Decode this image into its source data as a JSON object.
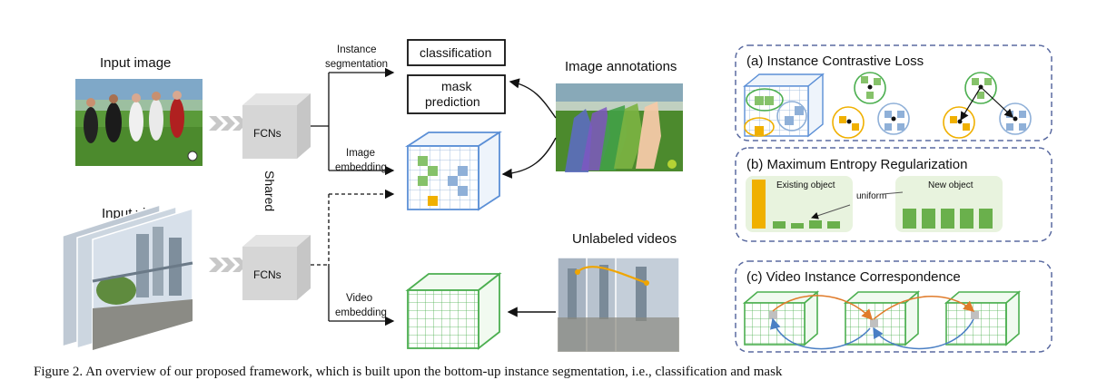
{
  "left": {
    "input_image_label": "Input image",
    "input_video_label": "Input video",
    "fcn_top_label": "FCNs",
    "fcn_bottom_label": "FCNs",
    "shared_label": "Shared"
  },
  "middle": {
    "instance_seg_line1": "Instance",
    "instance_seg_line2": "segmentation",
    "image_emb_line1": "Image",
    "image_emb_line2": "embedding",
    "video_emb_line1": "Video",
    "video_emb_line2": "embedding",
    "classification_label": "classification",
    "mask_pred_line1": "mask",
    "mask_pred_line2": "prediction",
    "image_annotations_label": "Image annotations",
    "unlabeled_videos_label": "Unlabeled videos"
  },
  "panels": {
    "a_title": "(a) Instance Contrastive Loss",
    "b_title": "(b) Maximum Entropy Regularization",
    "b_existing": "Existing object",
    "b_new": "New object",
    "b_uniform": "uniform",
    "c_title": "(c) Video Instance Correspondence"
  },
  "caption": "Figure 2. An overview of our proposed framework, which is built upon the bottom-up instance segmentation, i.e., classification and mask",
  "colors": {
    "blue": "#5b8fd6",
    "green": "#4caf50",
    "orange": "#f0a500",
    "light_blue": "#a7c4e6",
    "light_green": "#a8d08d",
    "panel_border": "#5a6aa0"
  }
}
